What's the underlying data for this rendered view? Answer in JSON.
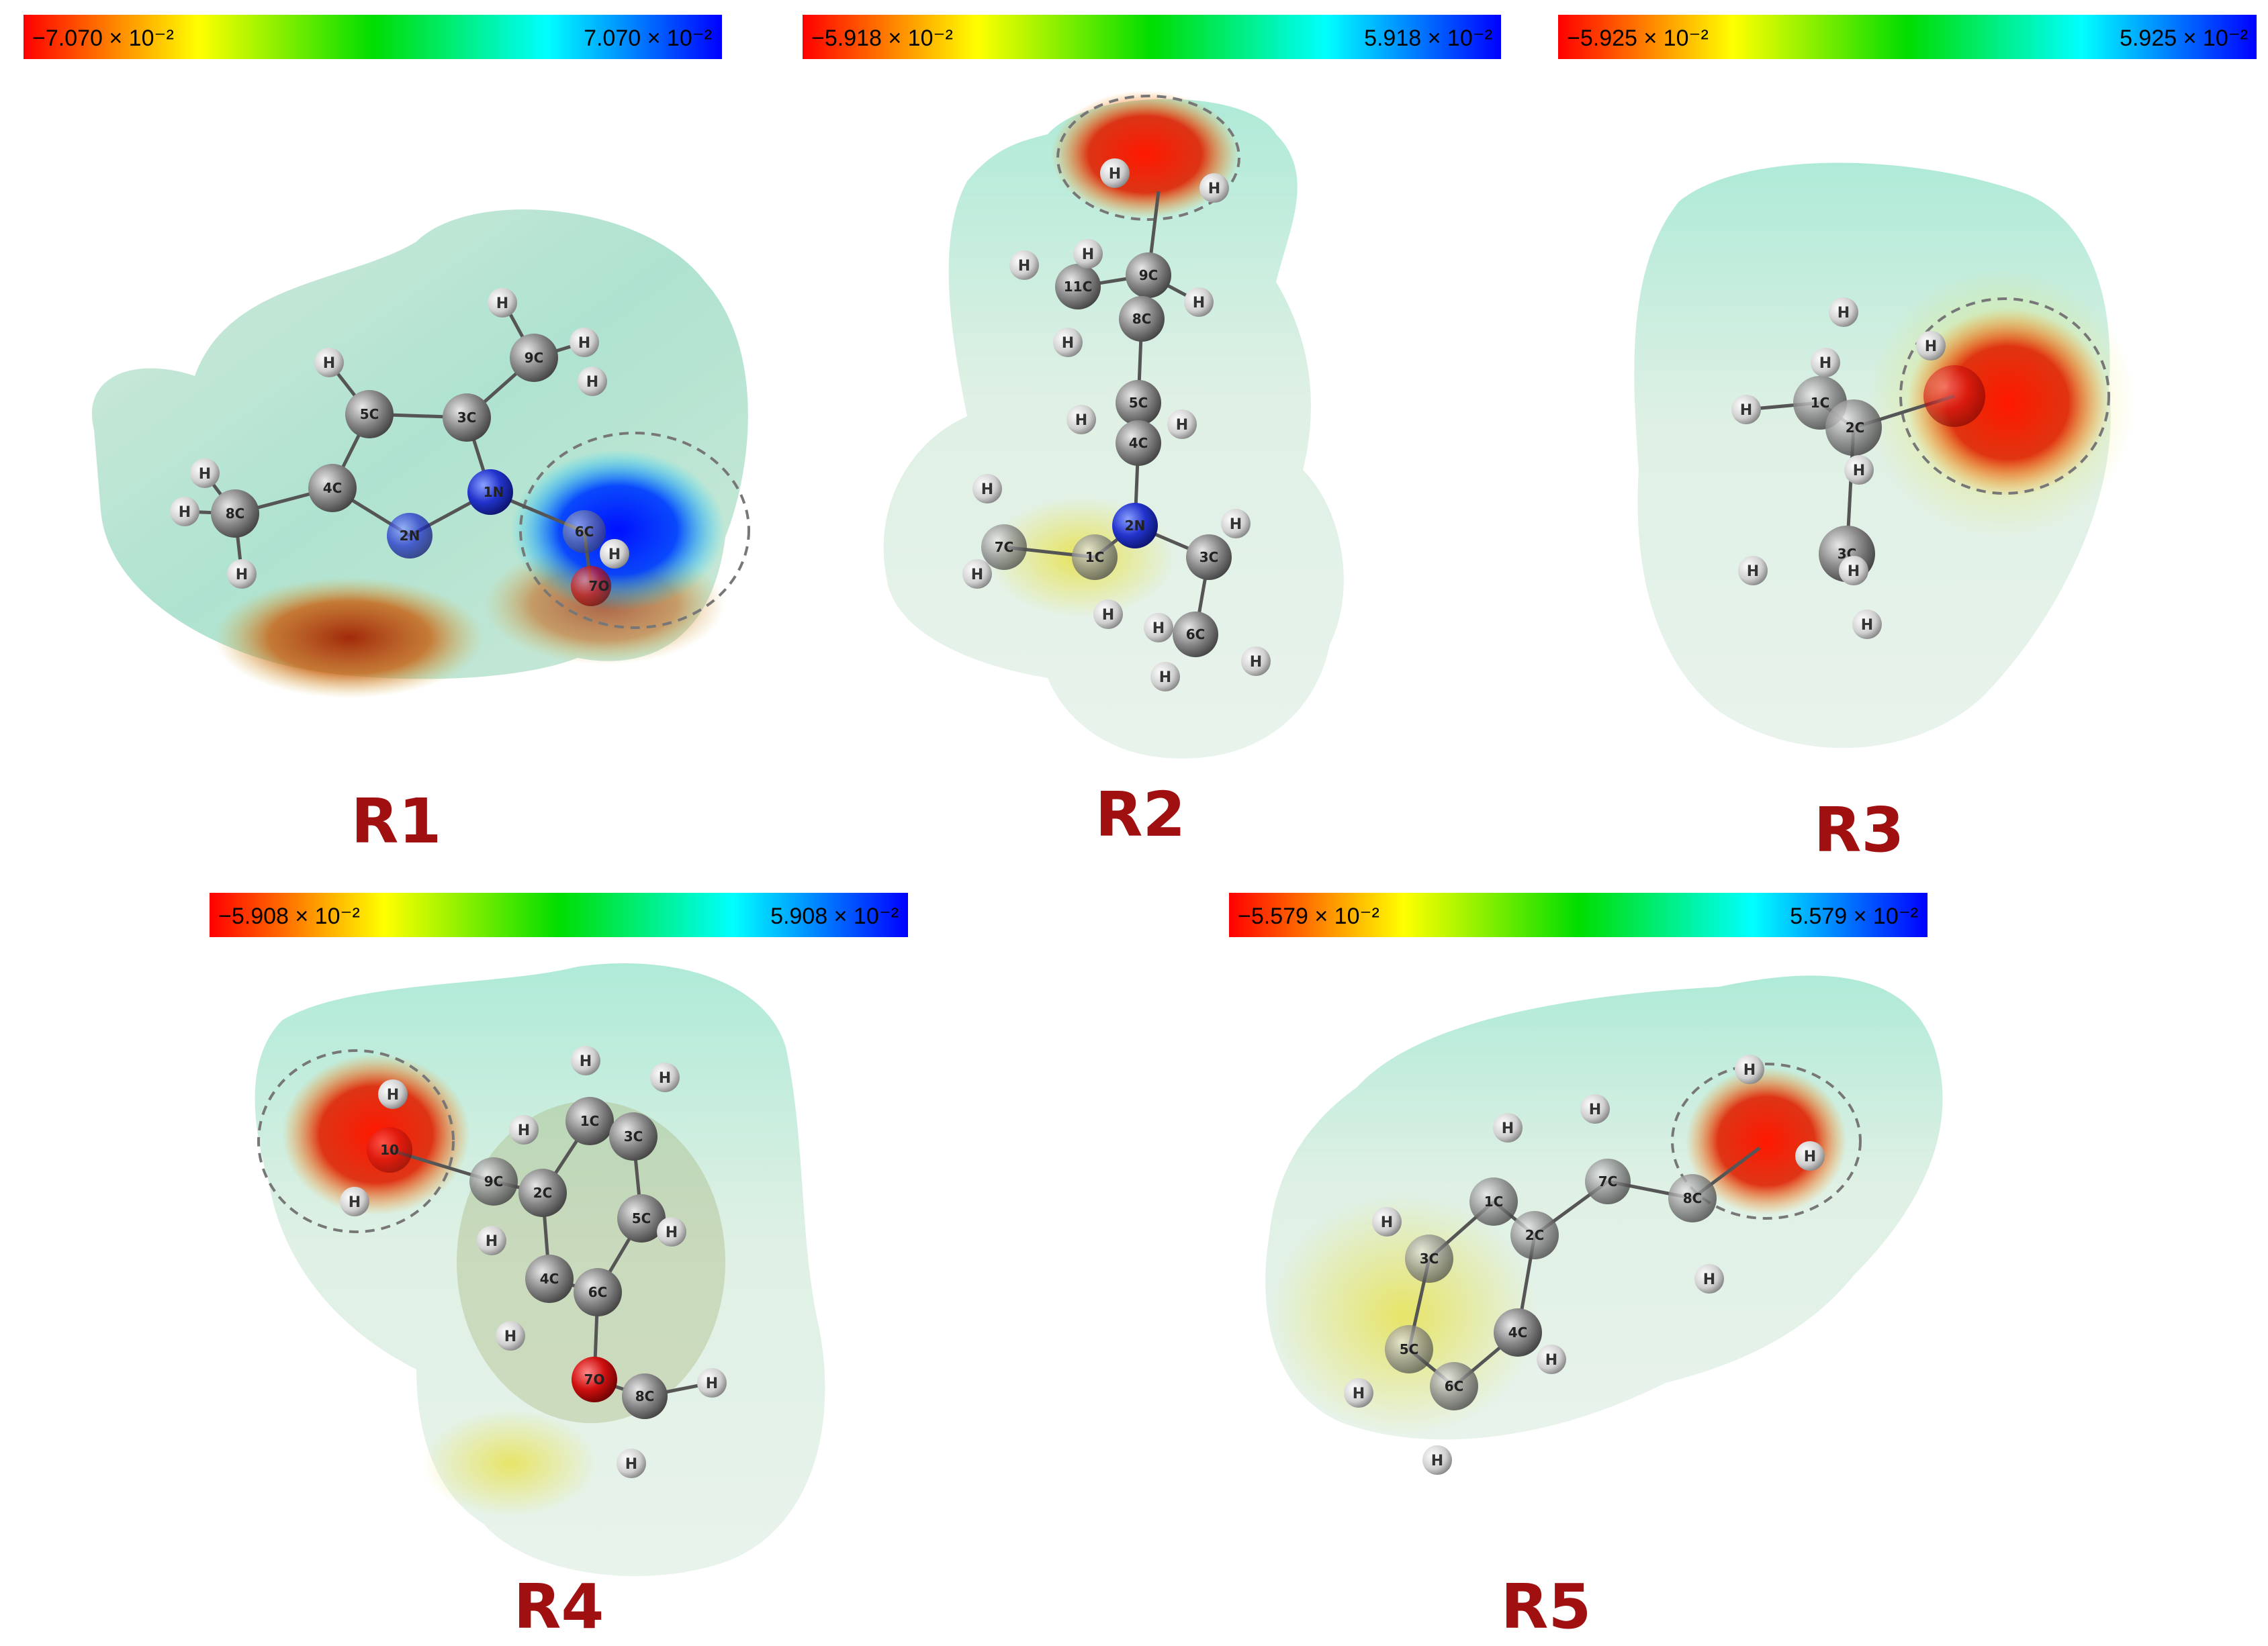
{
  "colorbars": [
    {
      "min_label": "−7.070 × 10⁻²",
      "max_label": "7.070 × 10⁻²"
    },
    {
      "min_label": "−5.918 × 10⁻²",
      "max_label": "5.918 × 10⁻²"
    },
    {
      "min_label": "−5.925 × 10⁻²",
      "max_label": "5.925 × 10⁻²"
    },
    {
      "min_label": "−5.908 × 10⁻²",
      "max_label": "5.908 × 10⁻²"
    },
    {
      "min_label": "−5.579 × 10⁻²",
      "max_label": "5.579 × 10⁻²"
    }
  ],
  "colors": {
    "scale_red": "#ff0000",
    "scale_yellow": "#ffff00",
    "scale_green": "#00dd00",
    "scale_cyan": "#00ffff",
    "scale_blue": "#0000ff",
    "label_red": "#a01010"
  },
  "panels": [
    {
      "label": "R1",
      "atoms": [
        "9C",
        "5C",
        "3C",
        "4C",
        "1N",
        "8C",
        "2N",
        "6C",
        "7O"
      ],
      "hydrogen": "H"
    },
    {
      "label": "R2",
      "atoms": [
        "9C",
        "11C",
        "8C",
        "5C",
        "4C",
        "2N",
        "7C",
        "1C",
        "3C",
        "6C"
      ],
      "hydrogen": "H"
    },
    {
      "label": "R3",
      "atoms": [
        "1C",
        "2C",
        "3C"
      ],
      "hydrogen": "H"
    },
    {
      "label": "R4",
      "atoms": [
        "1C",
        "3C",
        "9C",
        "2C",
        "5C",
        "10",
        "4C",
        "6C",
        "7O",
        "8C"
      ],
      "hydrogen": "H"
    },
    {
      "label": "R5",
      "atoms": [
        "1C",
        "7C",
        "8C",
        "2C",
        "3C",
        "4C",
        "5C",
        "6C"
      ],
      "hydrogen": "H"
    }
  ]
}
